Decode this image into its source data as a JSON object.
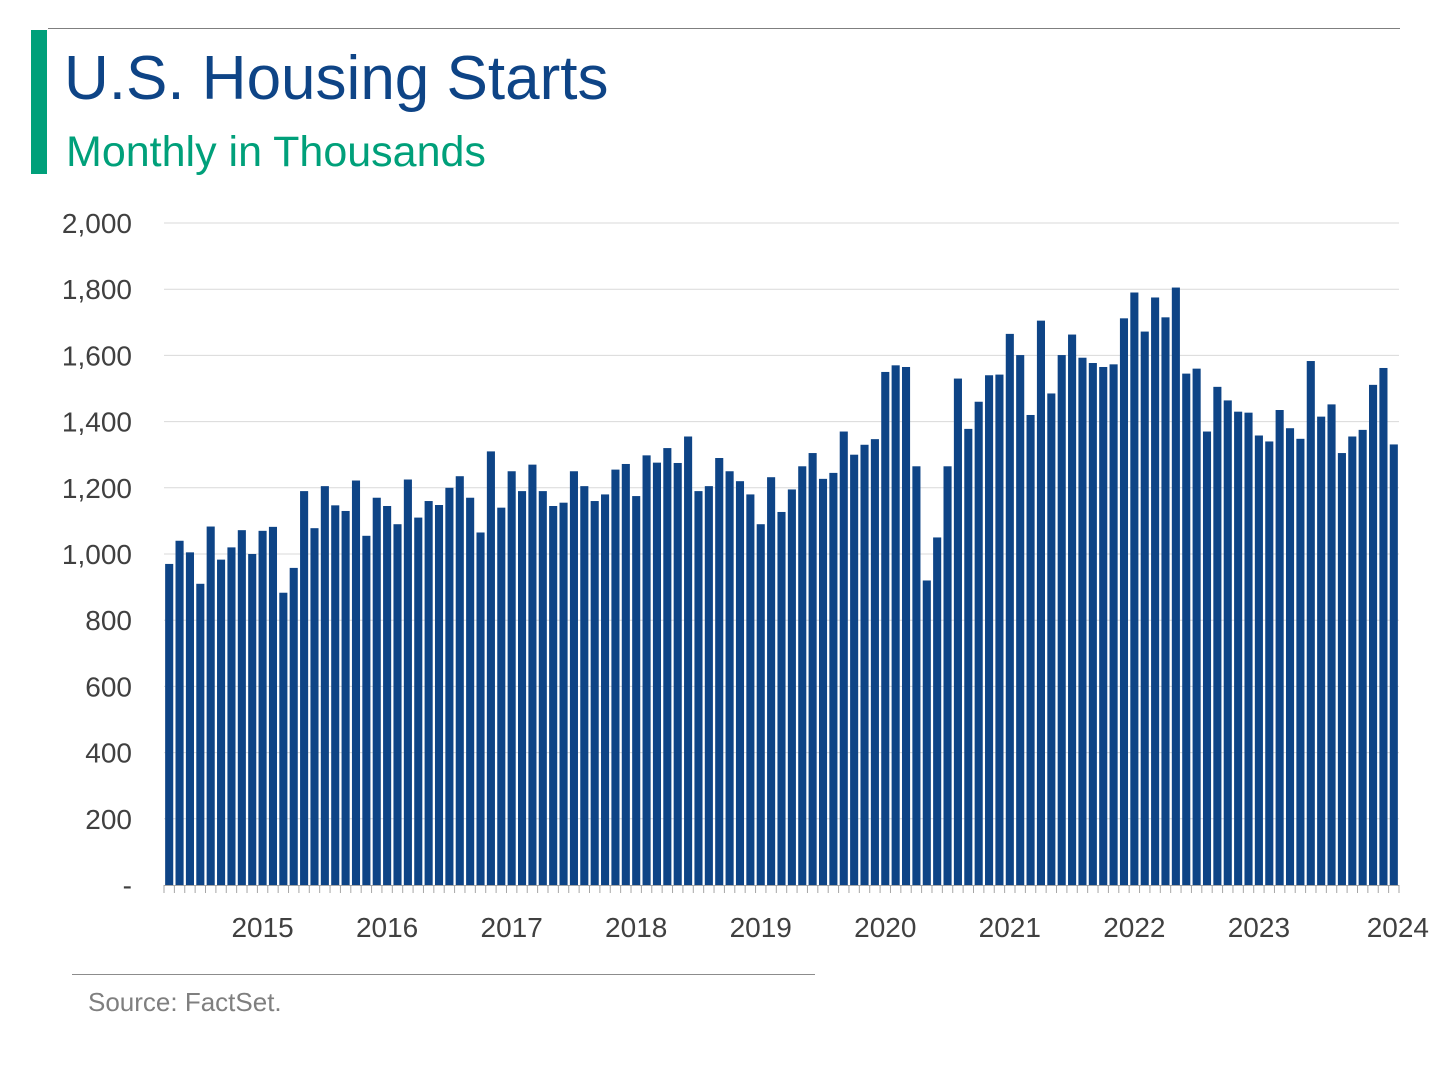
{
  "header": {
    "title": "U.S. Housing Starts",
    "subtitle": "Monthly in Thousands"
  },
  "footer": {
    "source": "Source: FactSet."
  },
  "colors": {
    "bar": "#0e4486",
    "title": "#0e4486",
    "subtitle": "#00a07a",
    "accent": "#00a07a",
    "grid": "#d9d9d9",
    "axis": "#a6a6a6",
    "tick_text": "#404040",
    "source": "#7f7f7f"
  },
  "chart_data": {
    "type": "bar",
    "title": "U.S. Housing Starts",
    "subtitle": "Monthly in Thousands",
    "xlabel": "",
    "ylabel": "",
    "ylim": [
      0,
      2000
    ],
    "yticks": [
      0,
      200,
      400,
      600,
      800,
      1000,
      1200,
      1400,
      1600,
      1800,
      2000
    ],
    "ytick_labels": [
      "-",
      "200",
      "400",
      "600",
      "800",
      "1,000",
      "1,200",
      "1,400",
      "1,600",
      "1,800",
      "2,000"
    ],
    "xtick_labels": [
      "2015",
      "2016",
      "2017",
      "2018",
      "2019",
      "2020",
      "2021",
      "2022",
      "2023",
      "2024"
    ],
    "xtick_bar_index": [
      9,
      21,
      33,
      45,
      57,
      69,
      81,
      93,
      105,
      117
    ],
    "grid": "horizontal",
    "legend": "none",
    "series": [
      {
        "values": [
          970,
          1040,
          1005,
          910,
          1083,
          983,
          1020,
          1072,
          1000,
          1070,
          1082,
          883,
          958,
          1190,
          1078,
          1205,
          1147,
          1130,
          1222,
          1055,
          1170,
          1145,
          1090,
          1225,
          1110,
          1160,
          1148,
          1200,
          1235,
          1170,
          1065,
          1310,
          1140,
          1250,
          1190,
          1270,
          1190,
          1145,
          1155,
          1250,
          1205,
          1160,
          1180,
          1255,
          1272,
          1175,
          1298,
          1276,
          1320,
          1275,
          1355,
          1190,
          1205,
          1290,
          1250,
          1220,
          1180,
          1090,
          1232,
          1127,
          1195,
          1265,
          1305,
          1227,
          1245,
          1370,
          1300,
          1330,
          1347,
          1550,
          1570,
          1565,
          1265,
          920,
          1050,
          1265,
          1530,
          1378,
          1460,
          1540,
          1542,
          1665,
          1601,
          1420,
          1705,
          1485,
          1601,
          1663,
          1593,
          1577,
          1565,
          1573,
          1712,
          1790,
          1672,
          1775,
          1715,
          1805,
          1545,
          1560,
          1370,
          1505,
          1464,
          1430,
          1427,
          1358,
          1340,
          1435,
          1380,
          1348,
          1583,
          1415,
          1452,
          1305,
          1355,
          1375,
          1511,
          1562,
          1331
        ]
      }
    ]
  }
}
